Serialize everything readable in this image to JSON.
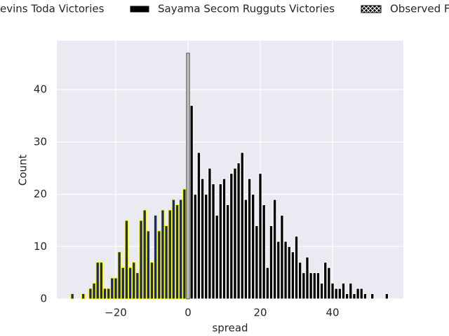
{
  "chart_data": {
    "type": "bar",
    "xlabel": "spread",
    "ylabel": "Count",
    "xlim": [
      -36.3,
      59.6
    ],
    "ylim": [
      0,
      49.4
    ],
    "xticks": [
      {
        "value": -20,
        "label": "−20"
      },
      0,
      20,
      40
    ],
    "yticks": [
      0,
      10,
      20,
      30,
      40
    ],
    "grid": true,
    "legend": "top",
    "series": [
      {
        "name": "evins Toda Victories",
        "color": "#1f2a5c",
        "edgecolor": "#ffff00",
        "x": [
          -32,
          -29,
          -27,
          -26,
          -25,
          -24,
          -23,
          -22,
          -21,
          -20,
          -19,
          -18,
          -17,
          -16,
          -15,
          -14,
          -13,
          -12,
          -11,
          -10,
          -9,
          -8,
          -7,
          -6,
          -5,
          -4,
          -3,
          -2,
          -1
        ],
        "values": [
          1,
          1,
          2,
          3,
          7,
          7,
          2,
          2,
          4,
          4,
          9,
          6,
          15,
          6,
          7,
          5,
          15,
          17,
          13,
          7,
          16,
          13,
          17,
          14,
          17,
          19,
          18,
          19,
          21
        ]
      },
      {
        "name": "Sayama Secom Rugguts Victories",
        "color": "#000000",
        "edgecolor": "#ffffff",
        "x": [
          1,
          2,
          3,
          4,
          5,
          6,
          7,
          8,
          9,
          10,
          11,
          12,
          13,
          14,
          15,
          16,
          17,
          18,
          19,
          20,
          21,
          22,
          23,
          24,
          25,
          26,
          27,
          28,
          29,
          30,
          31,
          32,
          33,
          34,
          35,
          36,
          37,
          38,
          39,
          40,
          41,
          42,
          43,
          44,
          45,
          46,
          47,
          48,
          49,
          51,
          55
        ],
        "values": [
          37,
          20,
          28,
          23,
          20,
          25,
          22,
          16,
          22,
          23,
          18,
          24,
          25,
          26,
          28,
          19,
          23,
          20,
          14,
          24,
          18,
          6,
          14,
          19,
          11,
          16,
          11,
          10,
          9,
          12,
          7,
          5,
          8,
          5,
          5,
          5,
          3,
          7,
          6,
          3,
          2,
          2,
          3,
          1,
          3,
          1,
          2,
          2,
          1,
          1,
          1
        ]
      },
      {
        "name": "Observed F",
        "color": "#c0c0c0",
        "edgecolor": "#555555",
        "hatch": true,
        "x": [
          0
        ],
        "values": [
          47
        ]
      }
    ]
  }
}
